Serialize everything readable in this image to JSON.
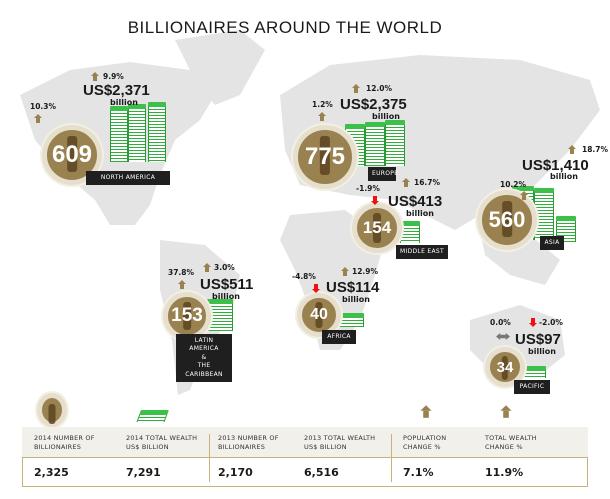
{
  "title": "BILLIONAIRES AROUND THE WORLD",
  "colors": {
    "gold": "#9a8150",
    "down": "#e11111",
    "money": "#2fae3a",
    "label_bg": "#1f1f1f",
    "map": "#e4e4e4"
  },
  "regions": [
    {
      "name": "NORTH AMERICA",
      "billionaires": "609",
      "population_change": "10.3%",
      "population_dir": "up",
      "wealth": "US$2,371",
      "unit": "billion",
      "wealth_change": "9.9%",
      "wealth_dir": "up"
    },
    {
      "name": "EUROPE",
      "billionaires": "775",
      "population_change": "1.2%",
      "population_dir": "up",
      "wealth": "US$2,375",
      "unit": "billion",
      "wealth_change": "12.0%",
      "wealth_dir": "up"
    },
    {
      "name": "MIDDLE EAST",
      "billionaires": "154",
      "population_change": "-1.9%",
      "population_dir": "down",
      "wealth": "US$413",
      "unit": "billion",
      "wealth_change": "16.7%",
      "wealth_dir": "up"
    },
    {
      "name": "ASIA",
      "billionaires": "560",
      "population_change": "10.2%",
      "population_dir": "up",
      "wealth": "US$1,410",
      "unit": "billion",
      "wealth_change": "18.7%",
      "wealth_dir": "up"
    },
    {
      "name": "LATIN AMERICA & THE CARIBBEAN",
      "billionaires": "153",
      "population_change": "37.8%",
      "population_dir": "up",
      "wealth": "US$511",
      "unit": "billion",
      "wealth_change": "3.0%",
      "wealth_dir": "up"
    },
    {
      "name": "AFRICA",
      "billionaires": "40",
      "population_change": "-4.8%",
      "population_dir": "down",
      "wealth": "US$114",
      "unit": "billion",
      "wealth_change": "12.9%",
      "wealth_dir": "up"
    },
    {
      "name": "PACIFIC",
      "billionaires": "34",
      "population_change": "0.0%",
      "population_dir": "flat",
      "wealth": "US$97",
      "unit": "billion",
      "wealth_change": "-2.0%",
      "wealth_dir": "down"
    }
  ],
  "summary": {
    "headers": [
      "2014 NUMBER OF BILLIONAIRES",
      "2014 TOTAL WEALTH US$ BILLION",
      "2013 NUMBER OF BILLIONAIRES",
      "2013 TOTAL WEALTH US$ BILLION",
      "POPULATION CHANGE %",
      "TOTAL WEALTH CHANGE %"
    ],
    "values": [
      "2,325",
      "7,291",
      "2,170",
      "6,516",
      "7.1%",
      "11.9%"
    ],
    "population_dir": "up",
    "wealth_dir": "up"
  }
}
